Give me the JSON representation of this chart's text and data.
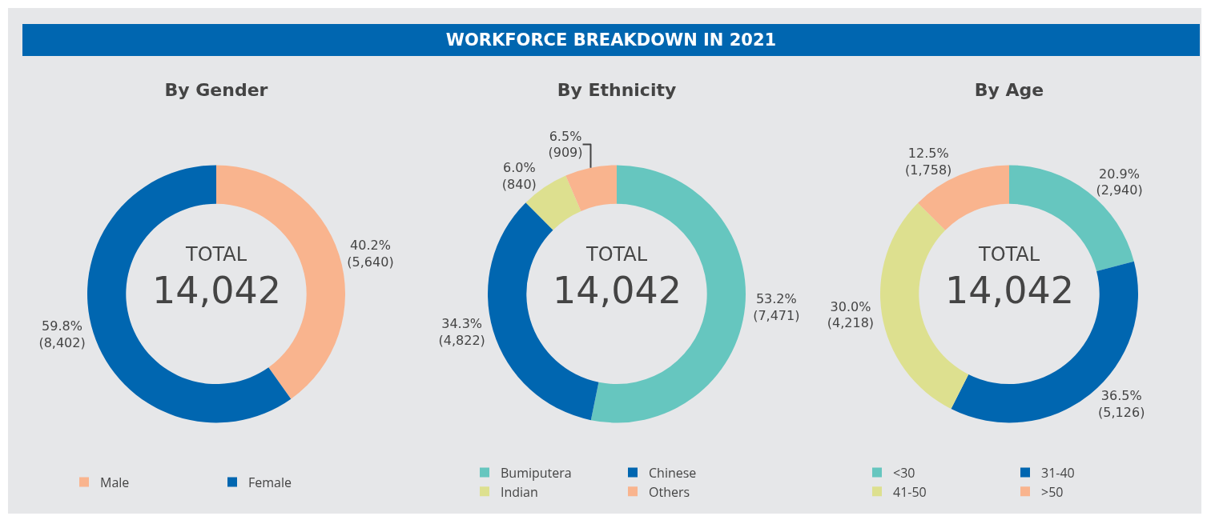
{
  "chart_data": [
    {
      "type": "other",
      "title": "WORKFORCE BREAKDOWN IN 2021"
    },
    {
      "type": "donut",
      "title": "By Gender",
      "categories": [
        "Male",
        "Female"
      ],
      "values": [
        5640,
        8402
      ],
      "colors": [
        "#f9b48e",
        "#0066b0"
      ],
      "value_labels": [
        "40.2%\n(5,640)",
        "59.8%\n(8,402)"
      ],
      "annotations": [
        "TOTAL",
        "14,042"
      ],
      "legend": "bottom"
    },
    {
      "type": "donut",
      "title": "By Ethnicity",
      "categories": [
        "Bumiputera",
        "Chinese",
        "Indian",
        "Others"
      ],
      "values": [
        7471,
        4822,
        840,
        909
      ],
      "colors": [
        "#66c6bf",
        "#0066b0",
        "#dde08f",
        "#f9b48e"
      ],
      "value_labels": [
        "53.2%\n(7,471)",
        "34.3%\n(4,822)",
        "6.0%\n(840)",
        "6.5%\n(909)"
      ],
      "annotations": [
        "TOTAL",
        "14,042"
      ],
      "legend": "bottom"
    },
    {
      "type": "donut",
      "title": "By Age",
      "categories": [
        "<30",
        "31-40",
        "41-50",
        ">50"
      ],
      "values": [
        2940,
        5126,
        4218,
        1758
      ],
      "colors": [
        "#66c6bf",
        "#0066b0",
        "#dde08f",
        "#f9b48e"
      ],
      "value_labels": [
        "20.9%\n(2,940)",
        "36.5%\n(5,126)",
        "30.0%\n(4,218)",
        "12.5%\n(1,758)"
      ],
      "annotations": [
        "TOTAL",
        "14,042"
      ],
      "legend": "bottom"
    }
  ]
}
